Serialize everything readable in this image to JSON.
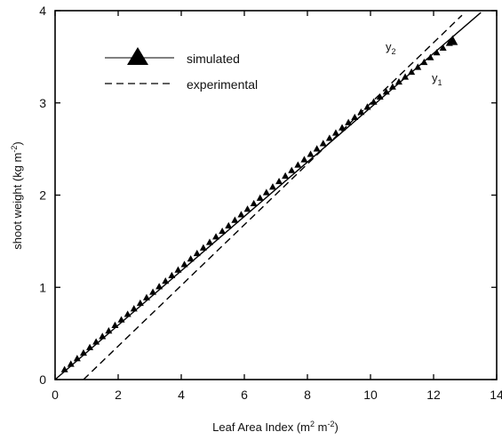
{
  "chart_data": {
    "type": "line",
    "title": "",
    "xlabel": {
      "text": "Leaf Area Index (m",
      "sup1": "2",
      "mid": " m",
      "sup2": "-2",
      "end": ")"
    },
    "ylabel": {
      "text": "shoot weight (kg m",
      "sup": "-2",
      "end": ")"
    },
    "xlim": [
      0,
      14
    ],
    "ylim": [
      0,
      4
    ],
    "xticks": [
      0,
      2,
      4,
      6,
      8,
      10,
      12,
      14
    ],
    "yticks": [
      0,
      1,
      2,
      3,
      4
    ],
    "grid": false,
    "legend": {
      "placement": "top-left"
    },
    "series": [
      {
        "name": "simulated",
        "style": "solid",
        "marker": "triangle",
        "line": [
          [
            0,
            0
          ],
          [
            13.5,
            3.98
          ]
        ],
        "points_x": [
          0.3,
          0.5,
          0.7,
          0.9,
          1.1,
          1.3,
          1.5,
          1.7,
          1.9,
          2.1,
          2.3,
          2.5,
          2.7,
          2.9,
          3.1,
          3.3,
          3.5,
          3.7,
          3.9,
          4.1,
          4.3,
          4.5,
          4.7,
          4.9,
          5.1,
          5.3,
          5.5,
          5.7,
          5.9,
          6.1,
          6.3,
          6.5,
          6.7,
          6.9,
          7.1,
          7.3,
          7.5,
          7.7,
          7.9,
          8.1,
          8.3,
          8.5,
          8.7,
          8.9,
          9.1,
          9.3,
          9.5,
          9.7,
          9.9,
          10.1,
          10.3,
          10.5,
          10.7,
          10.9,
          11.1,
          11.3,
          11.5,
          11.7,
          11.9,
          12.1,
          12.3,
          12.5,
          12.6
        ]
      },
      {
        "name": "experimental",
        "style": "dashed",
        "line": [
          [
            0.9,
            0
          ],
          [
            12.9,
            3.95
          ]
        ]
      }
    ],
    "annotations": [
      {
        "label": "y",
        "sub": "2",
        "x": 10.55,
        "y": 3.48
      },
      {
        "label": "y",
        "sub": "1",
        "x": 11.75,
        "y": 3.17
      }
    ]
  }
}
